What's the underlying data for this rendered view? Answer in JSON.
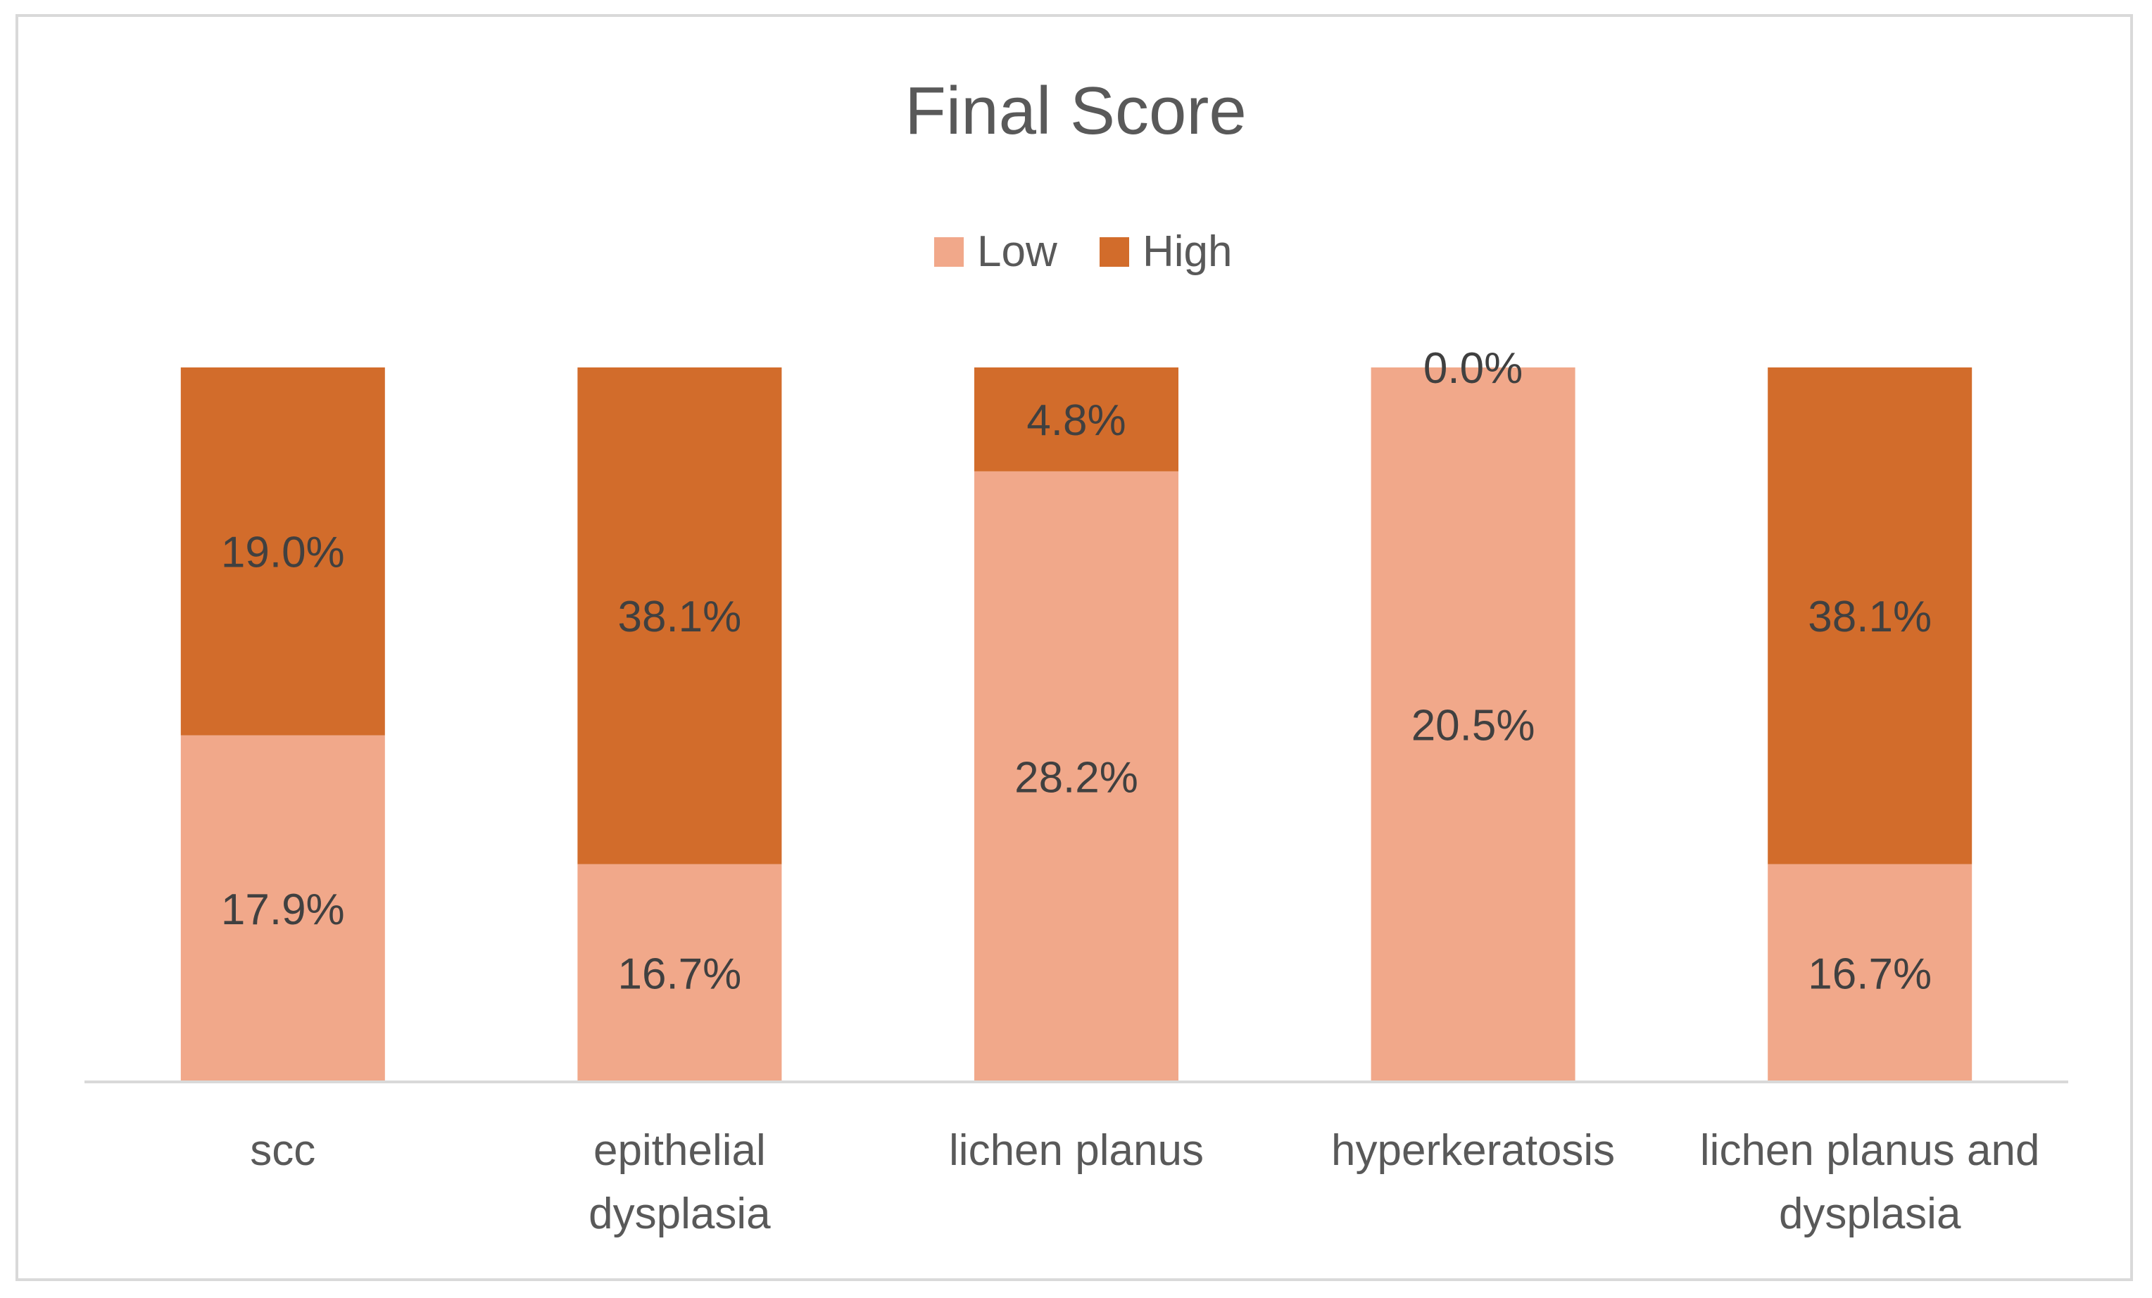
{
  "chart_data": {
    "type": "bar",
    "stacked": true,
    "normalized_100_percent": true,
    "title": "Final Score",
    "xlabel": "",
    "ylabel": "",
    "legend_placement": "top",
    "grid": false,
    "categories": [
      [
        "scc"
      ],
      [
        "epithelial",
        "dysplasia"
      ],
      [
        "lichen planus"
      ],
      [
        "hyperkeratosis"
      ],
      [
        "lichen planus and",
        "dysplasia"
      ]
    ],
    "series": [
      {
        "name": "Low",
        "color": "#F1A88A",
        "values": [
          17.9,
          16.7,
          28.2,
          20.5,
          16.7
        ],
        "labels": [
          "17.9%",
          "16.7%",
          "28.2%",
          "20.5%",
          "16.7%"
        ]
      },
      {
        "name": "High",
        "color": "#D26C2B",
        "values": [
          19.0,
          38.1,
          4.8,
          0.0,
          38.1
        ],
        "labels": [
          "19.0%",
          "38.1%",
          "4.8%",
          "0.0%",
          "38.1%"
        ]
      }
    ]
  }
}
